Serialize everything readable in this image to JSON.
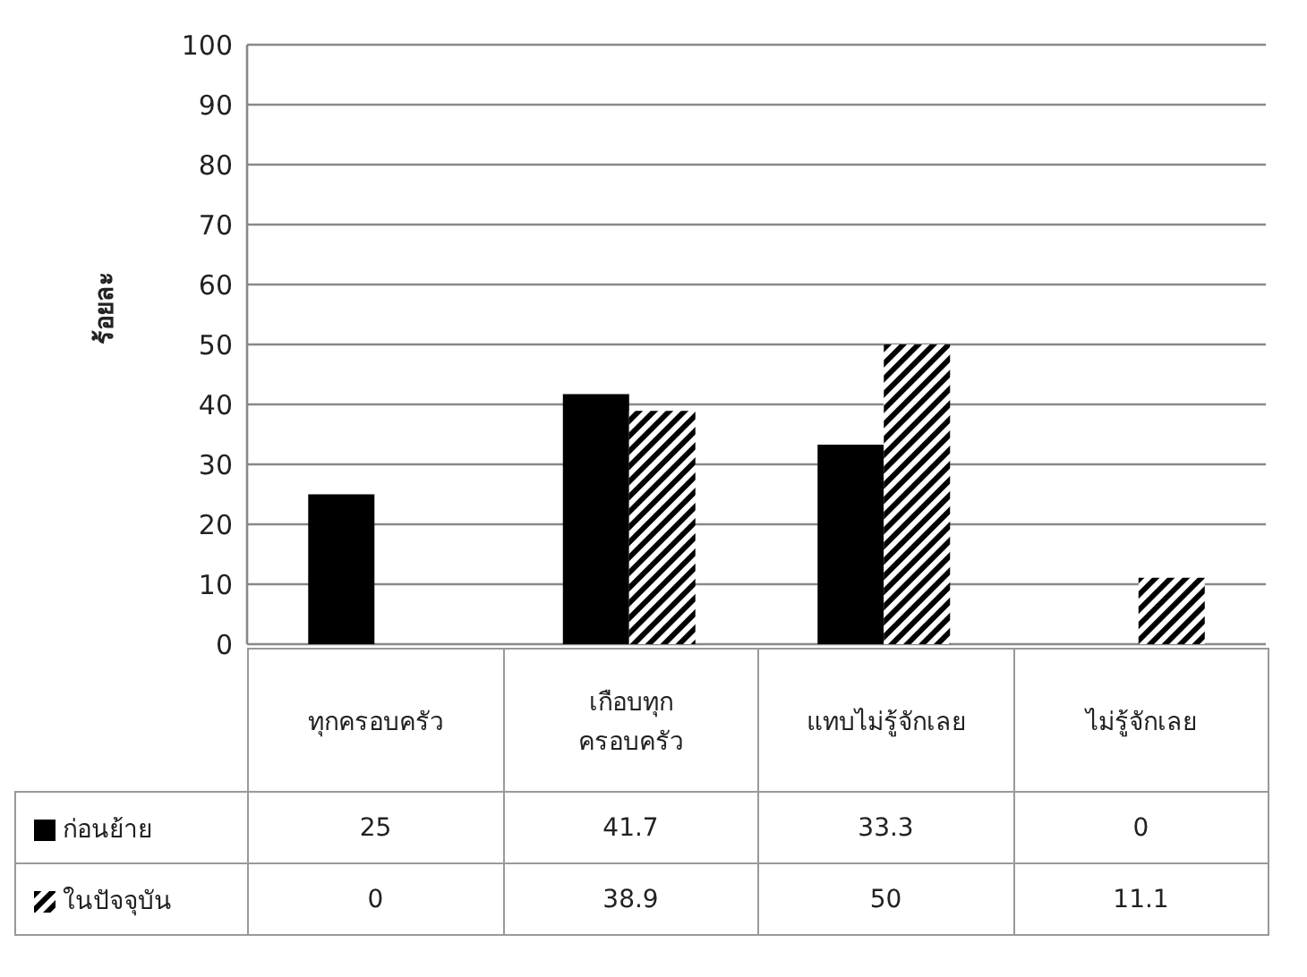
{
  "chart_data": {
    "type": "bar",
    "ylabel": "ร้อยละ",
    "categories": [
      "ทุกครอบครัว",
      "เกือบทุกครอบครัว",
      "แทบไม่รู้จักเลย",
      "ไม่รู้จักเลย"
    ],
    "series": [
      {
        "name": "ก่อนย้าย",
        "color": "#000000",
        "values": [
          25,
          41.7,
          33.3,
          0
        ]
      },
      {
        "name": "ในปัจจุบัน",
        "color": "#000000",
        "values": [
          0,
          38.9,
          50,
          11.1
        ]
      }
    ],
    "ylim": [
      0,
      100
    ],
    "yticks": [
      0,
      10,
      20,
      30,
      40,
      50,
      60,
      70,
      80,
      90,
      100
    ],
    "grid": "y",
    "legend": "bottom left",
    "data_labels": true
  }
}
